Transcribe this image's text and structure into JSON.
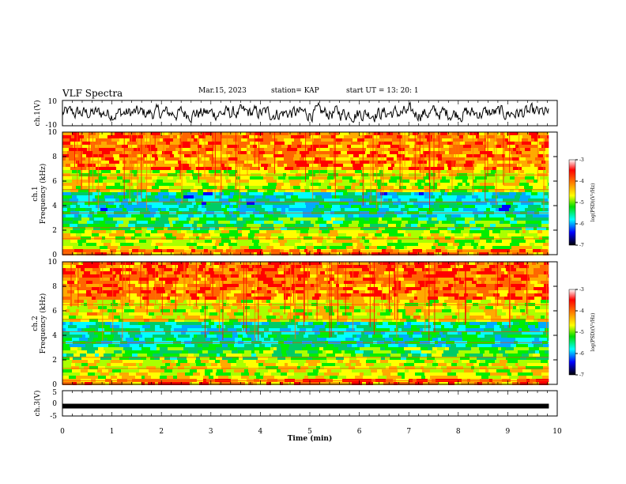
{
  "header": {
    "title": "VLF Spectra",
    "date": "Mar.15, 2023",
    "station": "station= KAP",
    "start": "start  UT  =   13: 20: 1"
  },
  "chart_data": [
    {
      "type": "line",
      "name": "ch1_waveform",
      "ylabel": "ch.1(V)",
      "ylim": [
        -10,
        10
      ],
      "yticks": [
        "10",
        "-10"
      ],
      "xlim": [
        0,
        10
      ],
      "series": [
        {
          "color": "#000000",
          "amplitude_approx": 4
        }
      ]
    },
    {
      "type": "heatmap",
      "name": "ch1_spectrogram",
      "ylabel": "Frequency (kHz)",
      "ylabel_prefix": "ch.1",
      "ylim": [
        0,
        10
      ],
      "yticks": [
        "0",
        "2",
        "4",
        "6",
        "8",
        "10"
      ],
      "xlim": [
        0,
        9.83
      ],
      "colorbar": {
        "label": "log(PSD)(V²/Hz)",
        "range": [
          -7,
          -3
        ],
        "ticks": [
          "-3",
          "-4",
          "-5",
          "-6",
          "-7"
        ]
      }
    },
    {
      "type": "heatmap",
      "name": "ch2_spectrogram",
      "ylabel": "Frequency (kHz)",
      "ylabel_prefix": "ch.2",
      "ylim": [
        0,
        10
      ],
      "yticks": [
        "0",
        "2",
        "4",
        "6",
        "8",
        "10"
      ],
      "xlim": [
        0,
        9.83
      ],
      "colorbar": {
        "label": "log(PSD)(V²/Hz)",
        "range": [
          -7,
          -3
        ],
        "ticks": [
          "-3",
          "-4",
          "-5",
          "-6",
          "-7"
        ]
      }
    },
    {
      "type": "line",
      "name": "ch3_voltage",
      "ylabel": "ch.3(V)",
      "ylim": [
        -5,
        5
      ],
      "yticks": [
        "5",
        "0",
        "-5"
      ],
      "xlim": [
        0,
        10
      ],
      "series": [
        {
          "color": "#000000",
          "value": -1.1,
          "band_width": 0.6
        }
      ]
    }
  ],
  "xaxis": {
    "label": "Time (min)",
    "ticks": [
      "0",
      "1",
      "2",
      "3",
      "4",
      "5",
      "6",
      "7",
      "8",
      "9",
      "10"
    ]
  }
}
